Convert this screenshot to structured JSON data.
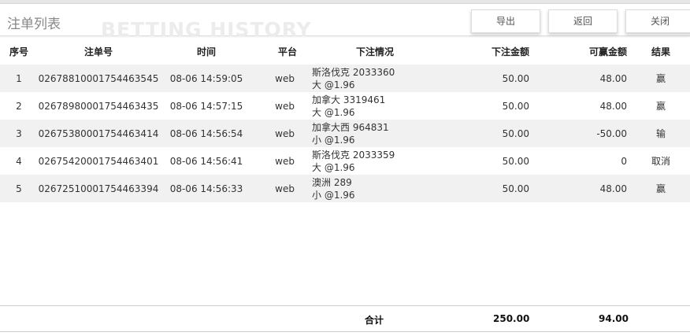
{
  "header": {
    "title": "注单列表",
    "watermark": "BETTING HISTORY",
    "buttons": {
      "export": "导出",
      "back": "返回",
      "close": "关闭"
    }
  },
  "table": {
    "columns": [
      "序号",
      "注单号",
      "时间",
      "平台",
      "下注情况",
      "下注金额",
      "可赢金额",
      "结果"
    ],
    "rows": [
      {
        "no": "1",
        "id": "02678810001754463545",
        "time": "08-06 14:59:05",
        "platform": "web",
        "event": "斯洛伐克 2033360",
        "pick": "大 @1.96",
        "stake": "50.00",
        "win": "48.00",
        "result": "赢"
      },
      {
        "no": "2",
        "id": "02678980001754463435",
        "time": "08-06 14:57:15",
        "platform": "web",
        "event": "加拿大 3319461",
        "pick": "大 @1.96",
        "stake": "50.00",
        "win": "48.00",
        "result": "赢"
      },
      {
        "no": "3",
        "id": "02675380001754463414",
        "time": "08-06 14:56:54",
        "platform": "web",
        "event": "加拿大西 964831",
        "pick": "小 @1.96",
        "stake": "50.00",
        "win": "-50.00",
        "result": "输"
      },
      {
        "no": "4",
        "id": "02675420001754463401",
        "time": "08-06 14:56:41",
        "platform": "web",
        "event": "斯洛伐克 2033359",
        "pick": "大 @1.96",
        "stake": "50.00",
        "win": "0",
        "result": "取消"
      },
      {
        "no": "5",
        "id": "02672510001754463394",
        "time": "08-06 14:56:33",
        "platform": "web",
        "event": "澳洲 289",
        "pick": "小 @1.96",
        "stake": "50.00",
        "win": "48.00",
        "result": "赢"
      }
    ]
  },
  "footer": {
    "label": "合计",
    "total_stake": "250.00",
    "total_win": "94.00"
  }
}
